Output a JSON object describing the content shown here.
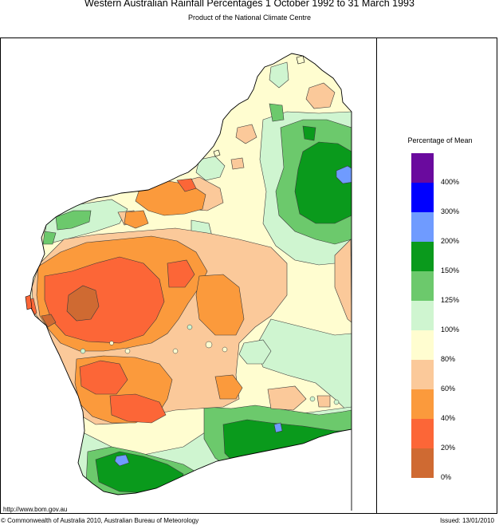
{
  "header": {
    "title": "Western Australian Rainfall Percentages 1 October 1992 to 31 March 1993",
    "subtitle": "Product of the National Climate Centre"
  },
  "legend": {
    "title": "Percentage of Mean",
    "bands": [
      {
        "label": "400%",
        "color": "#6a0a9e"
      },
      {
        "label": "300%",
        "color": "#0000ff"
      },
      {
        "label": "200%",
        "color": "#6f9bff"
      },
      {
        "label": "150%",
        "color": "#0a9a1c"
      },
      {
        "label": "125%",
        "color": "#6cc96c"
      },
      {
        "label": "100%",
        "color": "#cff5d0"
      },
      {
        "label": "80%",
        "color": "#fffdd0"
      },
      {
        "label": "60%",
        "color": "#fbc99a"
      },
      {
        "label": "40%",
        "color": "#fb9a3c"
      },
      {
        "label": "20%",
        "color": "#fc6637"
      },
      {
        "label": "0%",
        "color": "#cf6a32"
      }
    ]
  },
  "footer": {
    "url": "http://www.bom.gov.au",
    "copyright": "© Commonwealth of Australia 2010, Australian Bureau of Meteorology",
    "issued": "Issued: 13/01/2010"
  }
}
